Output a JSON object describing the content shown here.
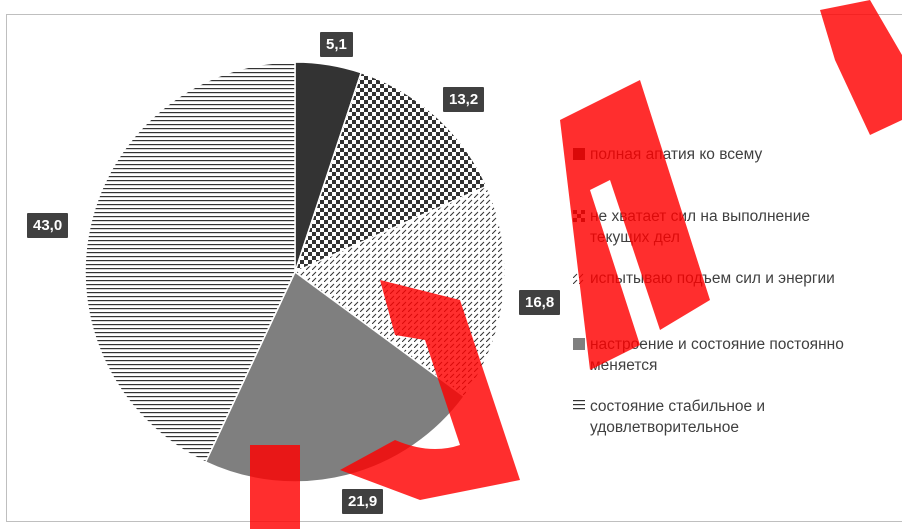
{
  "chart_data": {
    "type": "pie",
    "title": "",
    "start_angle_deg": 0,
    "direction": "clockwise",
    "slices": [
      {
        "label": "полная апатия ко всему",
        "value": 5.1,
        "value_label": "5,1",
        "fill": "solid",
        "color": "#333333"
      },
      {
        "label": "не хватает сил на выполнение текущих дел",
        "value": 13.2,
        "value_label": "13,2",
        "fill": "checkerboard",
        "color": "#333333"
      },
      {
        "label": "испытываю подъем сил и энергии",
        "value": 16.8,
        "value_label": "16,8",
        "fill": "diagonal-dashes",
        "color": "#333333"
      },
      {
        "label": "настроение и состояние постоянно меняется",
        "value": 21.9,
        "value_label": "21,9",
        "fill": "solid",
        "color": "#7f7f7f"
      },
      {
        "label": "состояние стабильное и удовлетворительное",
        "value": 43.0,
        "value_label": "43,0",
        "fill": "horizontal-lines",
        "color": "#333333"
      }
    ],
    "legend_position": "right"
  },
  "legend_entries": [
    {
      "line1": "полная апатия ко всему",
      "line2": ""
    },
    {
      "line1": "не хватает сил на выполнение",
      "line2": "текущих дел"
    },
    {
      "line1": "испытываю подъем сил и энергии",
      "line2": ""
    },
    {
      "line1": "настроение и состояние постоянно",
      "line2": "меняется"
    },
    {
      "line1": "состояние стабильное и",
      "line2": "удовлетворительное"
    }
  ],
  "watermark": {
    "text": "БДПУ",
    "color": "#ff0000"
  }
}
